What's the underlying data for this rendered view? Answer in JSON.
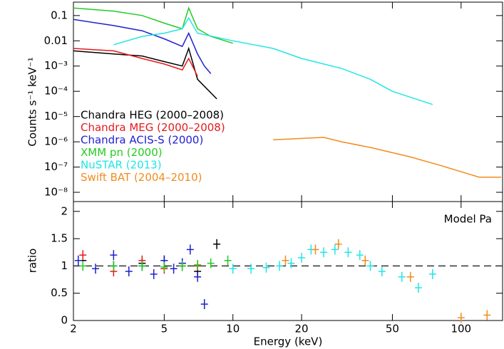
{
  "chart_data": [
    {
      "type": "line",
      "ylabel": "Counts s⁻¹ keV⁻¹",
      "xlog": true,
      "ylog": true,
      "xlim": [
        2,
        152
      ],
      "ylim": [
        4.3e-09,
        0.34
      ],
      "yticks": [
        {
          "value": 1e-08,
          "label": "10⁻⁸"
        },
        {
          "value": 1e-07,
          "label": "10⁻⁷"
        },
        {
          "value": 1e-06,
          "label": "10⁻⁶"
        },
        {
          "value": 1e-05,
          "label": "10⁻⁵"
        },
        {
          "value": 0.0001,
          "label": "10⁻⁴"
        },
        {
          "value": 0.001,
          "label": "10⁻³"
        },
        0.01,
        0.1
      ],
      "series": [
        {
          "name": "Chandra HEG (2000–2008)",
          "color": "#000000",
          "x": [
            2,
            3,
            4,
            5,
            6,
            6.4,
            7,
            8.5
          ],
          "values": [
            0.004,
            0.003,
            0.0025,
            0.0015,
            0.001,
            0.005,
            0.0003,
            5e-05
          ]
        },
        {
          "name": "Chandra MEG (2000–2008)",
          "color": "#e41a1c",
          "x": [
            2,
            3,
            4,
            5,
            6,
            6.4,
            7
          ],
          "values": [
            0.005,
            0.004,
            0.002,
            0.0012,
            0.0007,
            0.002,
            0.0004
          ]
        },
        {
          "name": "Chandra ACIS-S (2000)",
          "color": "#1f1fd0",
          "x": [
            2,
            3,
            4,
            5,
            6,
            6.4,
            7,
            7.5,
            8
          ],
          "values": [
            0.07,
            0.04,
            0.025,
            0.012,
            0.006,
            0.02,
            0.003,
            0.001,
            0.0005
          ]
        },
        {
          "name": "XMM pn (2000)",
          "color": "#22cc22",
          "x": [
            2,
            3,
            4,
            5,
            6,
            6.4,
            7,
            8,
            10
          ],
          "values": [
            0.2,
            0.15,
            0.1,
            0.05,
            0.03,
            0.2,
            0.03,
            0.015,
            0.008
          ]
        },
        {
          "name": "NuSTAR (2013)",
          "color": "#22e5e5",
          "x": [
            3,
            4,
            5,
            6,
            6.4,
            7,
            10,
            15,
            20,
            30,
            40,
            50,
            75
          ],
          "values": [
            0.007,
            0.015,
            0.02,
            0.03,
            0.08,
            0.02,
            0.01,
            0.005,
            0.002,
            0.0008,
            0.0003,
            0.0001,
            3e-05
          ]
        },
        {
          "name": "Swift BAT (2004–2010)",
          "color": "#f08c1e",
          "x": [
            15,
            25,
            30,
            40,
            60,
            80,
            120,
            150
          ],
          "values": [
            1.2e-06,
            1.5e-06,
            1e-06,
            6e-07,
            2.5e-07,
            1.2e-07,
            4e-08,
            4e-08
          ]
        }
      ]
    },
    {
      "type": "scatter",
      "ylabel": "ratio",
      "xlabel": "Energy (keV)",
      "annotation": "Model Pa",
      "xlog": true,
      "xlim": [
        2,
        152
      ],
      "ylim": [
        0,
        2.18
      ],
      "reference": 1,
      "xticks": [
        2,
        5,
        10,
        20,
        50,
        100
      ],
      "yticks": [
        0,
        0.5,
        1,
        1.5,
        2
      ],
      "series": [
        {
          "name": "Chandra HEG",
          "color": "#000000",
          "x": [
            2.2,
            3,
            4,
            5,
            6,
            7,
            8.5
          ],
          "values": [
            1.1,
            1.0,
            1.05,
            1.1,
            1.0,
            0.9,
            1.4
          ]
        },
        {
          "name": "Chandra MEG",
          "color": "#e41a1c",
          "x": [
            2.2,
            3,
            4,
            5,
            6,
            7
          ],
          "values": [
            1.2,
            0.9,
            1.1,
            0.95,
            1.05,
            1.0
          ]
        },
        {
          "name": "Chandra ACIS-S",
          "color": "#1f1fd0",
          "x": [
            2.1,
            2.5,
            3,
            3.5,
            4,
            4.5,
            5,
            5.5,
            6,
            6.5,
            7,
            7.5
          ],
          "values": [
            1.1,
            0.95,
            1.2,
            0.9,
            1.0,
            0.85,
            1.1,
            0.95,
            1.05,
            1.3,
            0.8,
            0.3
          ]
        },
        {
          "name": "XMM pn",
          "color": "#22cc22",
          "x": [
            2.2,
            3,
            4,
            5,
            6,
            7,
            8,
            9.5
          ],
          "values": [
            1.0,
            1.0,
            1.0,
            0.98,
            1.0,
            1.02,
            1.05,
            1.1
          ]
        },
        {
          "name": "NuSTAR",
          "color": "#22e5e5",
          "x": [
            10,
            12,
            14,
            16,
            18,
            20,
            22,
            25,
            28,
            32,
            36,
            40,
            45,
            55,
            65,
            75
          ],
          "values": [
            0.95,
            0.95,
            0.97,
            1.0,
            1.05,
            1.15,
            1.3,
            1.25,
            1.3,
            1.25,
            1.2,
            1.0,
            0.9,
            0.8,
            0.6,
            0.85
          ]
        },
        {
          "name": "Swift BAT",
          "color": "#f08c1e",
          "x": [
            17,
            23,
            29,
            38,
            60,
            100,
            130
          ],
          "values": [
            1.1,
            1.3,
            1.4,
            1.1,
            0.8,
            0.05,
            0.1
          ]
        }
      ]
    }
  ]
}
